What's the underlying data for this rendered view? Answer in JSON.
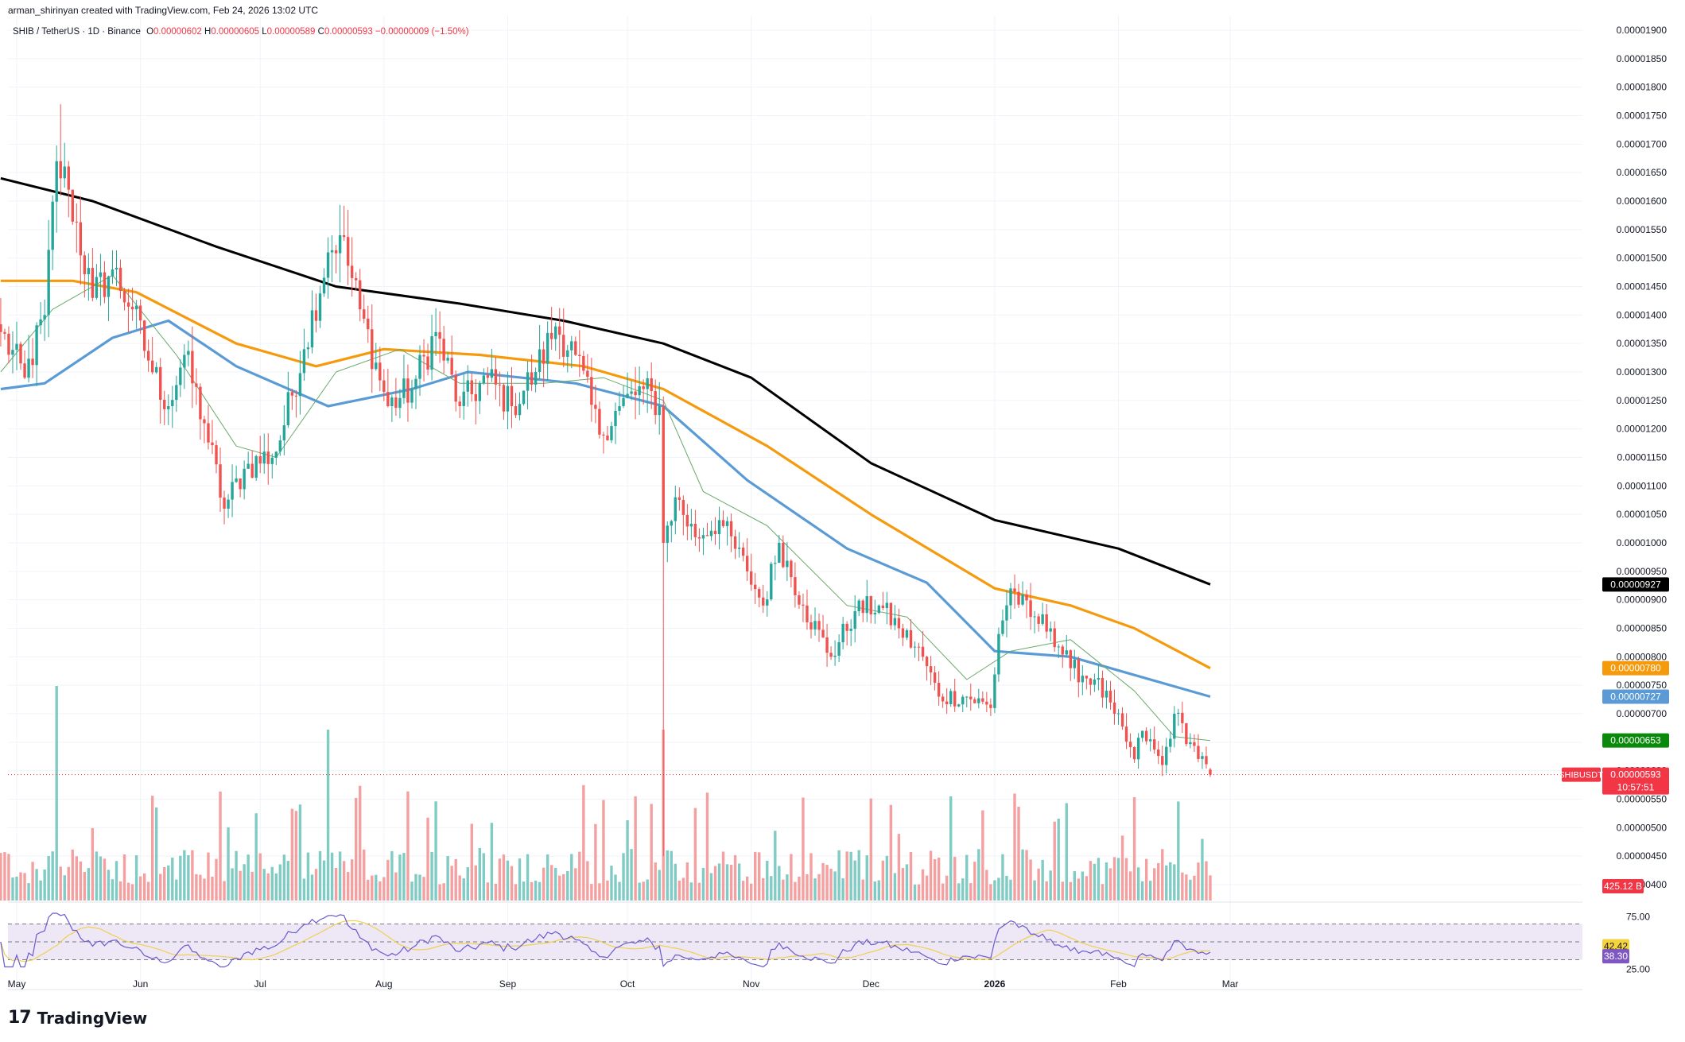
{
  "header": {
    "credit": "arman_shirinyan created with TradingView.com, Feb 24, 2026 13:02 UTC",
    "symbol": "SHIB / TetherUS · 1D · Binance",
    "o_label": "O",
    "o": "0.00000602",
    "h_label": "H",
    "h": "0.00000605",
    "l_label": "L",
    "l": "0.00000589",
    "c_label": "C",
    "c": "0.00000593",
    "change": "−0.00000009 (−1.50%)"
  },
  "brand": {
    "logo_mark": "17",
    "name": "TradingView"
  },
  "colors": {
    "up": "#26a69a",
    "down": "#ef5350",
    "vol_up": "#80cbc4",
    "vol_down": "#f4a0a0",
    "ma200": "#000000",
    "ma100": "#f59a0c",
    "ma50": "#5b9bd5",
    "ma20": "#6aaa6a",
    "rsi": "#6a5acd",
    "rsi_ma": "#f0d050",
    "rsi_band": "#ede7f6",
    "price_label": "#f23645"
  },
  "chart_data": {
    "type": "candlestick",
    "symbol": "SHIB / TetherUS",
    "interval": "1D",
    "exchange": "Binance",
    "ylim": [
      4.2e-06,
      1.92e-05
    ],
    "price_ticks": [
      "0.00001900",
      "0.00001850",
      "0.00001800",
      "0.00001750",
      "0.00001700",
      "0.00001650",
      "0.00001600",
      "0.00001550",
      "0.00001500",
      "0.00001450",
      "0.00001400",
      "0.00001350",
      "0.00001300",
      "0.00001250",
      "0.00001200",
      "0.00001150",
      "0.00001100",
      "0.00001050",
      "0.00001000",
      "0.00000950",
      "0.00000900",
      "0.00000850",
      "0.00000800",
      "0.00000750",
      "0.00000700",
      "0.00000650",
      "0.00000600",
      "0.00000550",
      "0.00000500",
      "0.00000450",
      "0.00000400"
    ],
    "x_ticks": [
      {
        "label": "May",
        "date": "2025-05-01"
      },
      {
        "label": "Jun",
        "date": "2025-06-01"
      },
      {
        "label": "Jul",
        "date": "2025-07-01"
      },
      {
        "label": "Aug",
        "date": "2025-08-01"
      },
      {
        "label": "Sep",
        "date": "2025-09-01"
      },
      {
        "label": "Oct",
        "date": "2025-10-01"
      },
      {
        "label": "Nov",
        "date": "2025-11-01"
      },
      {
        "label": "Dec",
        "date": "2025-12-01"
      },
      {
        "label": "2026",
        "date": "2026-01-01",
        "bold": true
      },
      {
        "label": "Feb",
        "date": "2026-02-01"
      },
      {
        "label": "Mar",
        "date": "2026-03-01"
      }
    ],
    "close_anchors": [
      [
        "2025-04-27",
        1.37e-05
      ],
      [
        "2025-05-03",
        1.29e-05
      ],
      [
        "2025-05-08",
        1.4e-05
      ],
      [
        "2025-05-11",
        1.67e-05
      ],
      [
        "2025-05-14",
        1.62e-05
      ],
      [
        "2025-05-20",
        1.43e-05
      ],
      [
        "2025-05-25",
        1.48e-05
      ],
      [
        "2025-05-30",
        1.41e-05
      ],
      [
        "2025-06-03",
        1.32e-05
      ],
      [
        "2025-06-08",
        1.24e-05
      ],
      [
        "2025-06-12",
        1.33e-05
      ],
      [
        "2025-06-17",
        1.21e-05
      ],
      [
        "2025-06-22",
        1.06e-05
      ],
      [
        "2025-06-27",
        1.13e-05
      ],
      [
        "2025-07-05",
        1.16e-05
      ],
      [
        "2025-07-12",
        1.34e-05
      ],
      [
        "2025-07-18",
        1.51e-05
      ],
      [
        "2025-07-21",
        1.54e-05
      ],
      [
        "2025-07-26",
        1.41e-05
      ],
      [
        "2025-08-02",
        1.24e-05
      ],
      [
        "2025-08-08",
        1.27e-05
      ],
      [
        "2025-08-14",
        1.37e-05
      ],
      [
        "2025-08-20",
        1.24e-05
      ],
      [
        "2025-08-27",
        1.29e-05
      ],
      [
        "2025-09-02",
        1.24e-05
      ],
      [
        "2025-09-08",
        1.3e-05
      ],
      [
        "2025-09-13",
        1.38e-05
      ],
      [
        "2025-09-18",
        1.33e-05
      ],
      [
        "2025-09-24",
        1.19e-05
      ],
      [
        "2025-09-29",
        1.24e-05
      ],
      [
        "2025-10-05",
        1.27e-05
      ],
      [
        "2025-10-09",
        1.24e-05
      ],
      [
        "2025-10-10",
        1e-05
      ],
      [
        "2025-10-13",
        1.08e-05
      ],
      [
        "2025-10-18",
        1.01e-05
      ],
      [
        "2025-10-24",
        1.04e-05
      ],
      [
        "2025-10-31",
        9.5e-06
      ],
      [
        "2025-11-04",
        8.9e-06
      ],
      [
        "2025-11-08",
        1e-05
      ],
      [
        "2025-11-14",
        8.9e-06
      ],
      [
        "2025-11-21",
        8e-06
      ],
      [
        "2025-11-27",
        8.8e-06
      ],
      [
        "2025-12-03",
        8.9e-06
      ],
      [
        "2025-12-08",
        8.5e-06
      ],
      [
        "2025-12-14",
        8e-06
      ],
      [
        "2025-12-18",
        7.3e-06
      ],
      [
        "2025-12-25",
        7.3e-06
      ],
      [
        "2025-12-31",
        7.1e-06
      ],
      [
        "2026-01-02",
        8.4e-06
      ],
      [
        "2026-01-05",
        9.2e-06
      ],
      [
        "2026-01-10",
        8.7e-06
      ],
      [
        "2026-01-15",
        8.5e-06
      ],
      [
        "2026-01-20",
        7.8e-06
      ],
      [
        "2026-01-26",
        7.6e-06
      ],
      [
        "2026-01-31",
        7e-06
      ],
      [
        "2026-02-05",
        6.2e-06
      ],
      [
        "2026-02-07",
        6.7e-06
      ],
      [
        "2026-02-12",
        6.1e-06
      ],
      [
        "2026-02-15",
        7e-06
      ],
      [
        "2026-02-19",
        6.5e-06
      ],
      [
        "2026-02-24",
        5.93e-06
      ]
    ],
    "series": [
      {
        "name": "MA 200",
        "color": "#000000",
        "points": [
          [
            "2025-04-27",
            1.64e-05
          ],
          [
            "2025-05-20",
            1.6e-05
          ],
          [
            "2025-06-20",
            1.52e-05
          ],
          [
            "2025-07-20",
            1.45e-05
          ],
          [
            "2025-08-20",
            1.42e-05
          ],
          [
            "2025-09-15",
            1.39e-05
          ],
          [
            "2025-10-10",
            1.35e-05
          ],
          [
            "2025-11-01",
            1.29e-05
          ],
          [
            "2025-12-01",
            1.14e-05
          ],
          [
            "2026-01-01",
            1.04e-05
          ],
          [
            "2026-02-01",
            9.9e-06
          ],
          [
            "2026-02-24",
            9.27e-06
          ]
        ],
        "last_label": "0.00000927"
      },
      {
        "name": "MA 100",
        "color": "#f59a0c",
        "points": [
          [
            "2025-04-27",
            1.46e-05
          ],
          [
            "2025-05-15",
            1.46e-05
          ],
          [
            "2025-05-31",
            1.44e-05
          ],
          [
            "2025-06-25",
            1.35e-05
          ],
          [
            "2025-07-15",
            1.31e-05
          ],
          [
            "2025-08-01",
            1.34e-05
          ],
          [
            "2025-08-25",
            1.33e-05
          ],
          [
            "2025-09-20",
            1.31e-05
          ],
          [
            "2025-10-10",
            1.27e-05
          ],
          [
            "2025-11-05",
            1.17e-05
          ],
          [
            "2025-12-01",
            1.05e-05
          ],
          [
            "2026-01-01",
            9.2e-06
          ],
          [
            "2026-01-20",
            8.9e-06
          ],
          [
            "2026-02-05",
            8.5e-06
          ],
          [
            "2026-02-24",
            7.8e-06
          ]
        ],
        "last_label": "0.00000780"
      },
      {
        "name": "MA 50",
        "color": "#5b9bd5",
        "points": [
          [
            "2025-04-27",
            1.27e-05
          ],
          [
            "2025-05-08",
            1.28e-05
          ],
          [
            "2025-05-25",
            1.36e-05
          ],
          [
            "2025-06-08",
            1.39e-05
          ],
          [
            "2025-06-25",
            1.31e-05
          ],
          [
            "2025-07-18",
            1.24e-05
          ],
          [
            "2025-08-08",
            1.27e-05
          ],
          [
            "2025-08-22",
            1.3e-05
          ],
          [
            "2025-09-18",
            1.28e-05
          ],
          [
            "2025-10-10",
            1.24e-05
          ],
          [
            "2025-10-31",
            1.11e-05
          ],
          [
            "2025-11-25",
            9.9e-06
          ],
          [
            "2025-12-15",
            9.3e-06
          ],
          [
            "2026-01-01",
            8.1e-06
          ],
          [
            "2026-01-20",
            8e-06
          ],
          [
            "2026-02-24",
            7.3e-06
          ]
        ],
        "last_label": "0.00000727"
      },
      {
        "name": "MA 20",
        "color": "#6aaa6a",
        "points": [
          [
            "2025-04-27",
            1.3e-05
          ],
          [
            "2025-05-10",
            1.41e-05
          ],
          [
            "2025-05-25",
            1.47e-05
          ],
          [
            "2025-06-10",
            1.33e-05
          ],
          [
            "2025-06-25",
            1.17e-05
          ],
          [
            "2025-07-05",
            1.15e-05
          ],
          [
            "2025-07-20",
            1.3e-05
          ],
          [
            "2025-08-05",
            1.34e-05
          ],
          [
            "2025-08-20",
            1.28e-05
          ],
          [
            "2025-09-10",
            1.28e-05
          ],
          [
            "2025-09-25",
            1.29e-05
          ],
          [
            "2025-10-10",
            1.25e-05
          ],
          [
            "2025-10-20",
            1.09e-05
          ],
          [
            "2025-11-05",
            1.03e-05
          ],
          [
            "2025-11-25",
            8.9e-06
          ],
          [
            "2025-12-10",
            8.7e-06
          ],
          [
            "2025-12-25",
            7.6e-06
          ],
          [
            "2026-01-05",
            8.1e-06
          ],
          [
            "2026-01-20",
            8.3e-06
          ],
          [
            "2026-02-05",
            7.4e-06
          ],
          [
            "2026-02-15",
            6.6e-06
          ],
          [
            "2026-02-24",
            6.53e-06
          ]
        ],
        "last_label": "0.00000653"
      }
    ],
    "price_label": {
      "symbol": "SHIBUSDT",
      "value": "0.00000593",
      "countdown": "10:57:51"
    },
    "volume_label": "425.12 B",
    "rsi": {
      "ticks": [
        "75.00",
        "25.00"
      ],
      "value": "38.30",
      "ma_value": "42.42",
      "band": [
        30,
        70
      ]
    }
  }
}
